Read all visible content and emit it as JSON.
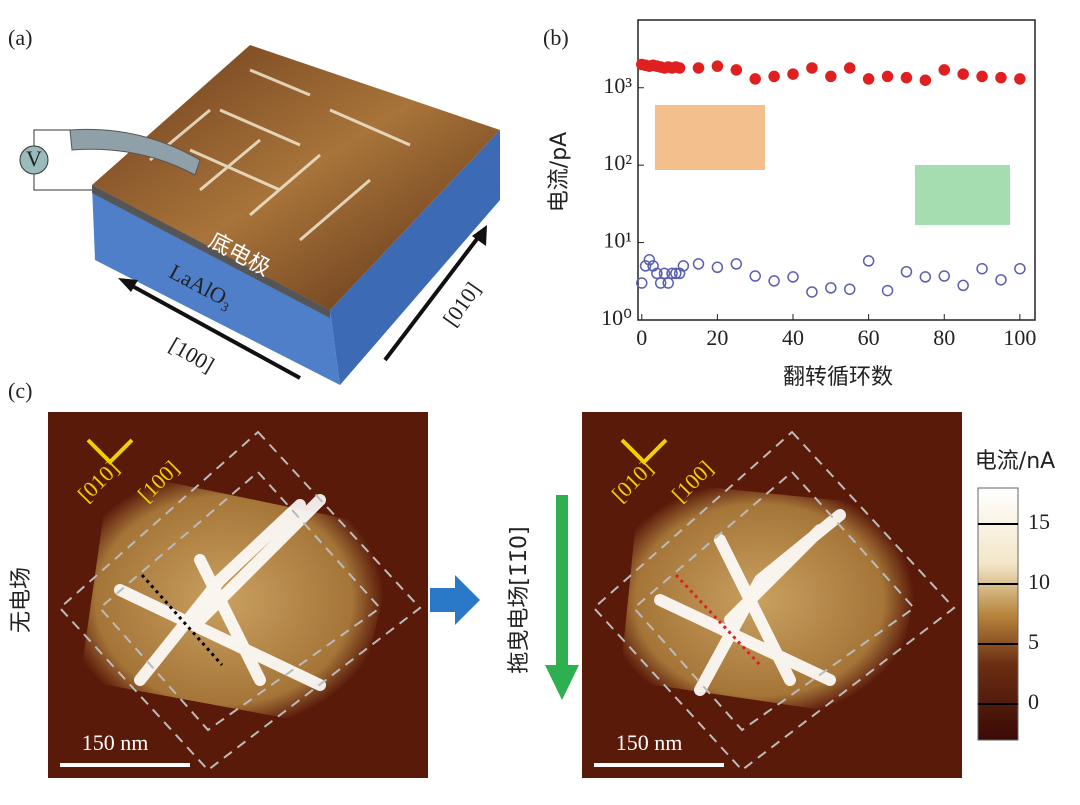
{
  "panels": {
    "a": "(a)",
    "b": "(b)",
    "c": "(c)"
  },
  "panel_a": {
    "electrode": "底电极",
    "substrate": "LaAlO₃",
    "dir_x": "[100]",
    "dir_y": "[010]",
    "meter": "V"
  },
  "panel_c": {
    "left_label": "无电场",
    "right_label": "拖曳电场[1̄1̄0]",
    "axis_a": "[010]",
    "axis_b": "[100]",
    "scale_bar": "150 nm",
    "colorbar": {
      "label": "电流/nA",
      "lim": [
        -3,
        18
      ],
      "ticks": [
        0,
        5,
        10,
        15
      ]
    }
  },
  "chart_data": {
    "type": "scatter",
    "xlabel": "翻转循环数",
    "ylabel": "电流/pA",
    "log_y": true,
    "xlim": [
      -1,
      104
    ],
    "xticks": [
      0,
      20,
      40,
      60,
      80,
      100
    ],
    "ylim": [
      1,
      7500
    ],
    "yticks": [
      {
        "value": 1,
        "label": "10⁰"
      },
      {
        "value": 10,
        "label": "10¹"
      },
      {
        "value": 100,
        "label": "10²"
      },
      {
        "value": 1000,
        "label": "10³"
      }
    ],
    "series": [
      {
        "color": "#e02020",
        "marker": "filled",
        "x": [
          0,
          1,
          2,
          3,
          4,
          5,
          6,
          7,
          8,
          9,
          10,
          15,
          20,
          25,
          30,
          35,
          40,
          45,
          50,
          55,
          60,
          65,
          70,
          75,
          80,
          85,
          90,
          95,
          100
        ],
        "values": [
          2000,
          1950,
          1900,
          1950,
          1900,
          1850,
          1800,
          1850,
          1800,
          1850,
          1800,
          1800,
          1900,
          1700,
          1300,
          1400,
          1500,
          1800,
          1400,
          1800,
          1300,
          1400,
          1350,
          1250,
          1700,
          1500,
          1400,
          1350,
          1300
        ]
      },
      {
        "color": "#5a5fb0",
        "marker": "open",
        "x": [
          0,
          1,
          2,
          3,
          4,
          5,
          6,
          7,
          8,
          9,
          10,
          11,
          15,
          20,
          25,
          30,
          35,
          40,
          45,
          50,
          55,
          60,
          65,
          70,
          75,
          80,
          85,
          90,
          95,
          100
        ],
        "values": [
          3,
          5,
          6,
          5,
          4,
          3,
          4,
          3,
          4,
          4,
          4,
          5,
          5.3,
          4.8,
          5.3,
          3.7,
          3.2,
          3.6,
          2.3,
          2.6,
          2.5,
          5.8,
          2.4,
          4.2,
          3.6,
          3.7,
          2.8,
          4.6,
          3.3,
          4.6
        ]
      }
    ]
  }
}
